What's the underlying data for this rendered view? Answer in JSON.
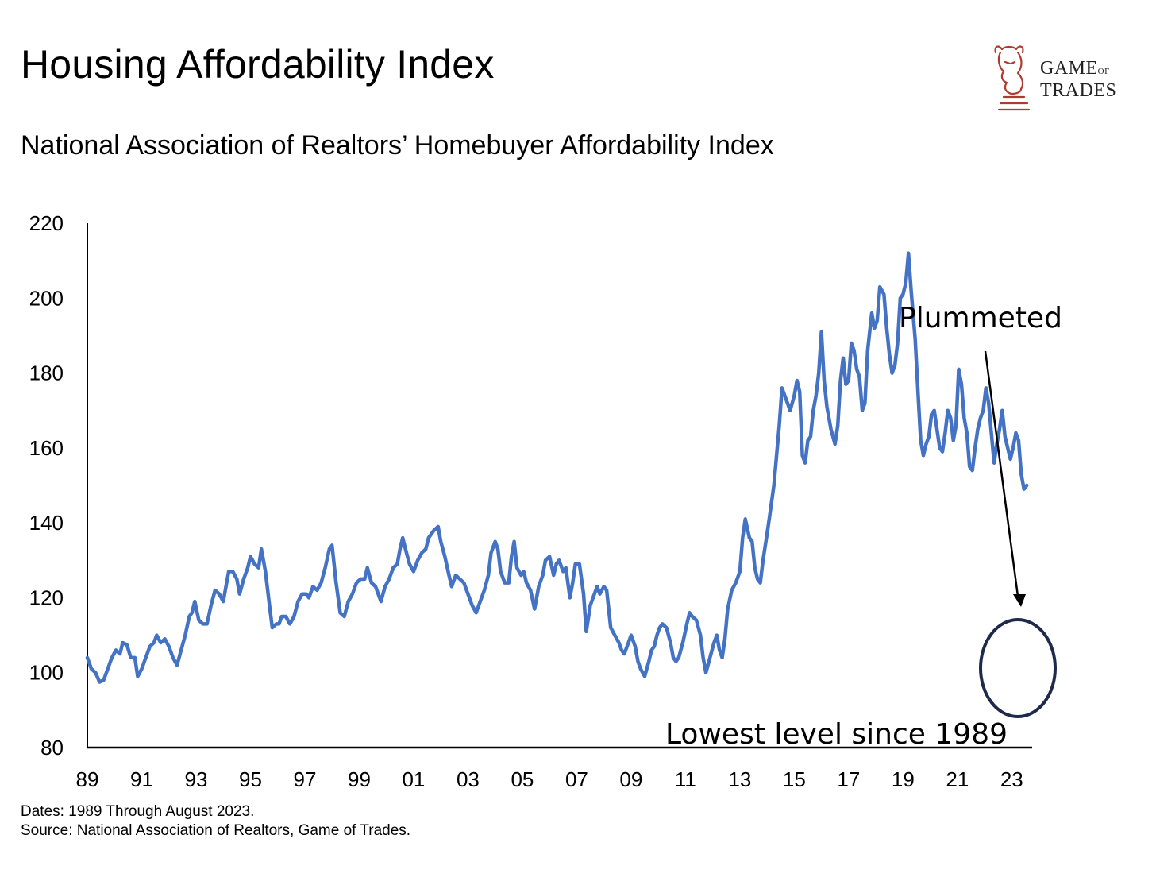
{
  "header": {
    "title": "Housing Affordability Index",
    "subtitle": "National Association of Realtors’ Homebuyer Affordability Index"
  },
  "logo": {
    "line1_big": "GAME",
    "line1_small": "OF",
    "line2": "TRADES",
    "icon": "bull-chess-knight-icon",
    "color": "#b03a2e"
  },
  "footer": {
    "dates": "Dates: 1989 Through August 2023.",
    "source": "Source: National Association of Realtors, Game of Trades."
  },
  "chart_data": {
    "type": "line",
    "title": "Housing Affordability Index",
    "subtitle": "National Association of Realtors’ Homebuyer Affordability Index",
    "xlabel": "",
    "ylabel": "",
    "xlim": [
      1989,
      2023.75
    ],
    "ylim": [
      80,
      220
    ],
    "yticks": [
      80,
      100,
      120,
      140,
      160,
      180,
      200,
      220
    ],
    "xticks": [
      {
        "year": 1989,
        "label": "89"
      },
      {
        "year": 1991,
        "label": "91"
      },
      {
        "year": 1993,
        "label": "93"
      },
      {
        "year": 1995,
        "label": "95"
      },
      {
        "year": 1997,
        "label": "97"
      },
      {
        "year": 1999,
        "label": "99"
      },
      {
        "year": 2001,
        "label": "01"
      },
      {
        "year": 2003,
        "label": "03"
      },
      {
        "year": 2005,
        "label": "05"
      },
      {
        "year": 2007,
        "label": "07"
      },
      {
        "year": 2009,
        "label": "09"
      },
      {
        "year": 2011,
        "label": "11"
      },
      {
        "year": 2013,
        "label": "13"
      },
      {
        "year": 2015,
        "label": "15"
      },
      {
        "year": 2017,
        "label": "17"
      },
      {
        "year": 2019,
        "label": "19"
      },
      {
        "year": 2021,
        "label": "21"
      },
      {
        "year": 2023,
        "label": "23"
      }
    ],
    "grid": false,
    "line_color": "#4472c4",
    "series": [
      {
        "points": [
          [
            1989.0,
            104
          ],
          [
            1989.15,
            101
          ],
          [
            1989.3,
            100
          ],
          [
            1989.45,
            97.5
          ],
          [
            1989.6,
            98
          ],
          [
            1989.75,
            101
          ],
          [
            1989.9,
            104
          ],
          [
            1990.05,
            106
          ],
          [
            1990.2,
            105
          ],
          [
            1990.3,
            108
          ],
          [
            1990.45,
            107.5
          ],
          [
            1990.6,
            104
          ],
          [
            1990.75,
            104
          ],
          [
            1990.85,
            99
          ],
          [
            1991.0,
            101
          ],
          [
            1991.15,
            104
          ],
          [
            1991.3,
            107
          ],
          [
            1991.45,
            108
          ],
          [
            1991.55,
            110
          ],
          [
            1991.7,
            108
          ],
          [
            1991.85,
            109
          ],
          [
            1992.0,
            107
          ],
          [
            1992.15,
            104
          ],
          [
            1992.3,
            102
          ],
          [
            1992.45,
            106
          ],
          [
            1992.6,
            110
          ],
          [
            1992.75,
            115
          ],
          [
            1992.85,
            116
          ],
          [
            1992.95,
            119
          ],
          [
            1993.1,
            114
          ],
          [
            1993.25,
            113
          ],
          [
            1993.4,
            113
          ],
          [
            1993.55,
            118
          ],
          [
            1993.7,
            122
          ],
          [
            1993.85,
            121
          ],
          [
            1994.0,
            119
          ],
          [
            1994.1,
            123
          ],
          [
            1994.2,
            127
          ],
          [
            1994.35,
            127
          ],
          [
            1994.5,
            125
          ],
          [
            1994.6,
            121
          ],
          [
            1994.75,
            125
          ],
          [
            1994.9,
            128
          ],
          [
            1995.0,
            131
          ],
          [
            1995.15,
            129
          ],
          [
            1995.3,
            128
          ],
          [
            1995.4,
            133
          ],
          [
            1995.55,
            127
          ],
          [
            1995.7,
            118
          ],
          [
            1995.8,
            112
          ],
          [
            1995.95,
            113
          ],
          [
            1996.05,
            113
          ],
          [
            1996.15,
            115
          ],
          [
            1996.3,
            115
          ],
          [
            1996.45,
            113
          ],
          [
            1996.6,
            115
          ],
          [
            1996.75,
            119
          ],
          [
            1996.9,
            121
          ],
          [
            1997.05,
            121
          ],
          [
            1997.15,
            120
          ],
          [
            1997.3,
            123
          ],
          [
            1997.45,
            122
          ],
          [
            1997.6,
            124
          ],
          [
            1997.75,
            128
          ],
          [
            1997.9,
            133
          ],
          [
            1998.0,
            134
          ],
          [
            1998.15,
            124
          ],
          [
            1998.3,
            116
          ],
          [
            1998.45,
            115
          ],
          [
            1998.6,
            119
          ],
          [
            1998.75,
            121
          ],
          [
            1998.9,
            124
          ],
          [
            1999.05,
            125
          ],
          [
            1999.2,
            125
          ],
          [
            1999.3,
            128
          ],
          [
            1999.45,
            124
          ],
          [
            1999.6,
            123
          ],
          [
            1999.7,
            121
          ],
          [
            1999.8,
            119
          ],
          [
            1999.95,
            123
          ],
          [
            2000.1,
            125
          ],
          [
            2000.25,
            128
          ],
          [
            2000.4,
            129
          ],
          [
            2000.5,
            133
          ],
          [
            2000.6,
            136
          ],
          [
            2000.7,
            133
          ],
          [
            2000.85,
            129
          ],
          [
            2001.0,
            127
          ],
          [
            2001.15,
            130
          ],
          [
            2001.3,
            132
          ],
          [
            2001.45,
            133
          ],
          [
            2001.55,
            136
          ],
          [
            2001.65,
            137
          ],
          [
            2001.75,
            138
          ],
          [
            2001.9,
            139
          ],
          [
            2002.0,
            135
          ],
          [
            2002.15,
            131
          ],
          [
            2002.3,
            126
          ],
          [
            2002.4,
            123
          ],
          [
            2002.55,
            126
          ],
          [
            2002.7,
            125
          ],
          [
            2002.85,
            124
          ],
          [
            2003.0,
            121
          ],
          [
            2003.15,
            118
          ],
          [
            2003.3,
            116
          ],
          [
            2003.45,
            119
          ],
          [
            2003.6,
            122
          ],
          [
            2003.75,
            126
          ],
          [
            2003.85,
            132
          ],
          [
            2004.0,
            135
          ],
          [
            2004.1,
            133
          ],
          [
            2004.2,
            127
          ],
          [
            2004.35,
            124
          ],
          [
            2004.5,
            124
          ],
          [
            2004.6,
            131
          ],
          [
            2004.7,
            135
          ],
          [
            2004.8,
            128
          ],
          [
            2004.95,
            126
          ],
          [
            2005.05,
            127
          ],
          [
            2005.15,
            124
          ],
          [
            2005.3,
            122
          ],
          [
            2005.45,
            117
          ],
          [
            2005.6,
            123
          ],
          [
            2005.75,
            126
          ],
          [
            2005.85,
            130
          ],
          [
            2006.0,
            131
          ],
          [
            2006.15,
            126
          ],
          [
            2006.25,
            129
          ],
          [
            2006.35,
            130
          ],
          [
            2006.5,
            127
          ],
          [
            2006.6,
            128
          ],
          [
            2006.75,
            120
          ],
          [
            2006.85,
            124
          ],
          [
            2006.95,
            129
          ],
          [
            2007.1,
            129
          ],
          [
            2007.25,
            121
          ],
          [
            2007.35,
            111
          ],
          [
            2007.5,
            118
          ],
          [
            2007.65,
            121
          ],
          [
            2007.75,
            123
          ],
          [
            2007.85,
            121
          ],
          [
            2008.0,
            123
          ],
          [
            2008.1,
            122
          ],
          [
            2008.25,
            112
          ],
          [
            2008.4,
            110
          ],
          [
            2008.55,
            108
          ],
          [
            2008.65,
            106
          ],
          [
            2008.75,
            105
          ],
          [
            2008.9,
            108
          ],
          [
            2009.0,
            110
          ],
          [
            2009.15,
            107
          ],
          [
            2009.25,
            103
          ],
          [
            2009.35,
            101
          ],
          [
            2009.5,
            99
          ],
          [
            2009.65,
            103
          ],
          [
            2009.75,
            106
          ],
          [
            2009.85,
            107
          ],
          [
            2009.95,
            110
          ],
          [
            2010.05,
            112
          ],
          [
            2010.15,
            113
          ],
          [
            2010.3,
            112
          ],
          [
            2010.45,
            108
          ],
          [
            2010.55,
            104
          ],
          [
            2010.65,
            103
          ],
          [
            2010.75,
            104
          ],
          [
            2010.9,
            108
          ],
          [
            2011.05,
            113
          ],
          [
            2011.15,
            116
          ],
          [
            2011.25,
            115
          ],
          [
            2011.4,
            114
          ],
          [
            2011.55,
            110
          ],
          [
            2011.65,
            104
          ],
          [
            2011.75,
            100
          ],
          [
            2011.9,
            104
          ],
          [
            2012.05,
            108
          ],
          [
            2012.15,
            110
          ],
          [
            2012.25,
            106
          ],
          [
            2012.35,
            104
          ],
          [
            2012.45,
            109
          ],
          [
            2012.55,
            117
          ],
          [
            2012.7,
            122
          ],
          [
            2012.85,
            124
          ],
          [
            2013.0,
            127
          ],
          [
            2013.1,
            136
          ],
          [
            2013.2,
            141
          ],
          [
            2013.35,
            136
          ],
          [
            2013.45,
            135
          ],
          [
            2013.55,
            128
          ],
          [
            2013.65,
            125
          ],
          [
            2013.75,
            124
          ],
          [
            2013.85,
            130
          ],
          [
            2014.0,
            137
          ],
          [
            2014.1,
            142
          ],
          [
            2014.25,
            150
          ],
          [
            2014.35,
            158
          ],
          [
            2014.45,
            166
          ],
          [
            2014.55,
            176
          ],
          [
            2014.7,
            173
          ],
          [
            2014.85,
            170
          ],
          [
            2015.0,
            174
          ],
          [
            2015.1,
            178
          ],
          [
            2015.2,
            175
          ],
          [
            2015.3,
            158
          ],
          [
            2015.4,
            156
          ],
          [
            2015.5,
            162
          ],
          [
            2015.6,
            163
          ],
          [
            2015.7,
            170
          ],
          [
            2015.8,
            174
          ],
          [
            2015.9,
            180
          ],
          [
            2016.0,
            191
          ],
          [
            2016.1,
            178
          ],
          [
            2016.2,
            171
          ],
          [
            2016.35,
            165
          ],
          [
            2016.5,
            161
          ],
          [
            2016.6,
            166
          ],
          [
            2016.7,
            178
          ],
          [
            2016.8,
            184
          ],
          [
            2016.9,
            177
          ],
          [
            2017.0,
            178
          ],
          [
            2017.1,
            188
          ],
          [
            2017.2,
            186
          ],
          [
            2017.3,
            181
          ],
          [
            2017.4,
            179
          ],
          [
            2017.5,
            170
          ],
          [
            2017.6,
            172
          ],
          [
            2017.7,
            186
          ],
          [
            2017.85,
            196
          ],
          [
            2017.95,
            192
          ],
          [
            2018.05,
            194
          ],
          [
            2018.15,
            203
          ],
          [
            2018.3,
            201
          ],
          [
            2018.4,
            192
          ],
          [
            2018.5,
            185
          ],
          [
            2018.6,
            180
          ],
          [
            2018.7,
            182
          ],
          [
            2018.8,
            188
          ],
          [
            2018.9,
            200
          ],
          [
            2019.0,
            201
          ],
          [
            2019.1,
            204
          ],
          [
            2019.2,
            212
          ],
          [
            2019.3,
            202
          ],
          [
            2019.45,
            189
          ],
          [
            2019.55,
            175
          ],
          [
            2019.65,
            162
          ],
          [
            2019.75,
            158
          ],
          [
            2019.85,
            161
          ],
          [
            2019.95,
            163
          ],
          [
            2020.05,
            169
          ],
          [
            2020.15,
            170
          ],
          [
            2020.25,
            165
          ],
          [
            2020.35,
            160
          ],
          [
            2020.45,
            159
          ],
          [
            2020.55,
            164
          ],
          [
            2020.65,
            170
          ],
          [
            2020.75,
            168
          ],
          [
            2020.85,
            162
          ],
          [
            2020.95,
            166
          ],
          [
            2021.05,
            181
          ],
          [
            2021.15,
            177
          ],
          [
            2021.25,
            168
          ],
          [
            2021.35,
            164
          ],
          [
            2021.45,
            155
          ],
          [
            2021.55,
            154
          ],
          [
            2021.65,
            160
          ],
          [
            2021.75,
            165
          ],
          [
            2021.85,
            168
          ],
          [
            2021.95,
            170
          ],
          [
            2022.05,
            176
          ],
          [
            2022.15,
            172
          ],
          [
            2022.25,
            164
          ],
          [
            2022.35,
            156
          ],
          [
            2022.45,
            161
          ],
          [
            2022.55,
            165
          ],
          [
            2022.65,
            170
          ],
          [
            2022.75,
            163
          ],
          [
            2022.85,
            160
          ],
          [
            2022.95,
            157
          ],
          [
            2023.05,
            160
          ],
          [
            2023.15,
            164
          ],
          [
            2023.25,
            162
          ],
          [
            2023.35,
            153
          ],
          [
            2023.45,
            149
          ],
          [
            2023.55,
            150
          ]
        ]
      }
    ],
    "annotations": [
      {
        "text": "Plummeted",
        "kind": "label-with-arrow"
      },
      {
        "text": "Lowest level since 1989",
        "kind": "label-with-circle"
      }
    ]
  }
}
